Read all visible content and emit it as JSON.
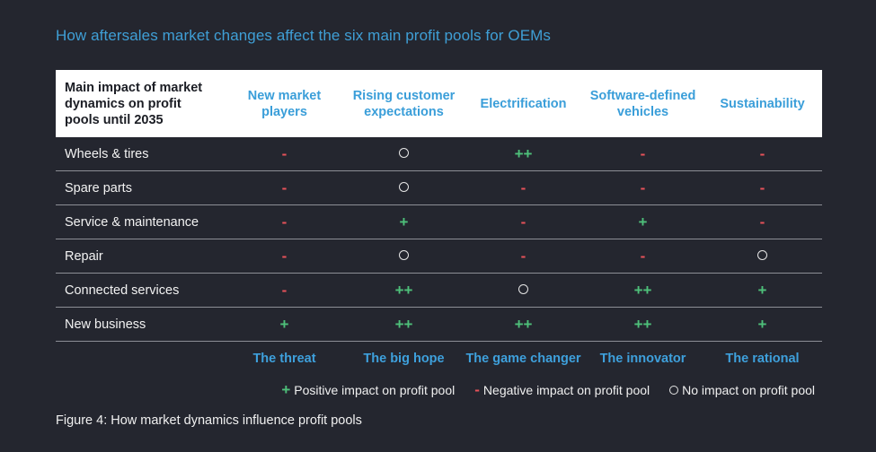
{
  "title": "How aftersales market changes affect the six main profit pools for OEMs",
  "header": {
    "row_label": "Main impact of market dynamics on profit pools until 2035",
    "columns": [
      "New market players",
      "Rising customer expectations",
      "Electrification",
      "Software-defined vehicles",
      "Sustainability"
    ]
  },
  "rows": [
    {
      "label": "Wheels & tires",
      "cells": [
        "-",
        "o",
        "++",
        "-",
        "-"
      ]
    },
    {
      "label": "Spare parts",
      "cells": [
        "-",
        "o",
        "-",
        "-",
        "-"
      ]
    },
    {
      "label": "Service & maintenance",
      "cells": [
        "-",
        "+",
        "-",
        "+",
        "-"
      ]
    },
    {
      "label": "Repair",
      "cells": [
        "-",
        "o",
        "-",
        "-",
        "o"
      ]
    },
    {
      "label": "Connected services",
      "cells": [
        "-",
        "++",
        "o",
        "++",
        "+"
      ]
    },
    {
      "label": "New business",
      "cells": [
        "+",
        "++",
        "++",
        "++",
        "+"
      ]
    }
  ],
  "archetypes": [
    "The threat",
    "The big hope",
    "The game changer",
    "The innovator",
    "The rational"
  ],
  "legend": {
    "positive_symbol": "+",
    "positive": "Positive impact on profit pool",
    "negative_symbol": "-",
    "negative": "Negative impact on profit pool",
    "none": "No impact on profit pool"
  },
  "caption": "Figure 4: How market dynamics influence profit pools",
  "colors": {
    "background": "#24262f",
    "accent": "#3a9ed9",
    "positive": "#4ec07a",
    "negative": "#e8525a"
  }
}
